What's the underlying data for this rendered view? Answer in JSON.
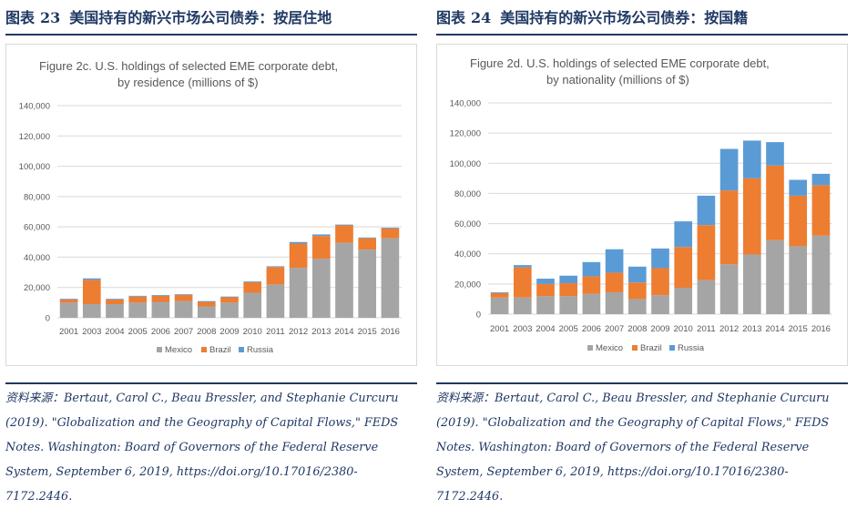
{
  "figures": [
    {
      "label": "图表",
      "number": "23",
      "title": "美国持有的新兴市场公司债券：按居住地",
      "source": "资料来源：Bertaut, Carol C., Beau Bressler, and Stephanie Curcuru (2019). \"Globalization and the Geography of Capital Flows,\" FEDS Notes. Washington: Board of Governors of the Federal Reserve System, September 6, 2019, https://doi.org/10.17016/2380-7172.2446."
    },
    {
      "label": "图表",
      "number": "24",
      "title": "美国持有的新兴市场公司债券：按国籍",
      "source": "资料来源：Bertaut, Carol C., Beau Bressler, and Stephanie Curcuru (2019). \"Globalization and the Geography of Capital Flows,\" FEDS Notes. Washington: Board of Governors of the Federal Reserve System, September 6, 2019, https://doi.org/10.17016/2380-7172.2446."
    }
  ],
  "colors": {
    "mexico": "#a5a5a5",
    "brazil": "#ed7d31",
    "russia": "#5b9bd5",
    "grid": "#d9d9d9",
    "text": "#595959"
  },
  "chart_data": [
    {
      "type": "bar",
      "stacked": true,
      "title": "Figure 2c.  U.S. holdings of selected EME corporate debt,",
      "subtitle": "by residence (millions of $)",
      "categories": [
        "2001",
        "2003",
        "2004",
        "2005",
        "2006",
        "2007",
        "2008",
        "2009",
        "2010",
        "2011",
        "2012",
        "2013",
        "2014",
        "2015",
        "2016"
      ],
      "series": [
        {
          "name": "Mexico",
          "values": [
            10000,
            9000,
            9000,
            10000,
            10500,
            11000,
            7500,
            10000,
            16500,
            22000,
            33000,
            39000,
            49500,
            45000,
            52500
          ]
        },
        {
          "name": "Brazil",
          "values": [
            2000,
            16000,
            3000,
            4000,
            4000,
            4000,
            3000,
            3500,
            7000,
            11500,
            16000,
            15000,
            11500,
            7500,
            6500
          ]
        },
        {
          "name": "Russia",
          "values": [
            500,
            1000,
            500,
            500,
            500,
            500,
            500,
            500,
            500,
            500,
            1000,
            1000,
            500,
            500,
            500
          ]
        }
      ],
      "yticks": [
        "0",
        "20,000",
        "40,000",
        "60,000",
        "80,000",
        "100,000",
        "120,000",
        "140,000"
      ],
      "ylim": [
        0,
        140000
      ],
      "legend_position": "bottom"
    },
    {
      "type": "bar",
      "stacked": true,
      "title": "Figure 2d.  U.S. holdings of selected EME corporate debt,",
      "subtitle": "by nationality (millions of $)",
      "categories": [
        "2001",
        "2003",
        "2004",
        "2005",
        "2006",
        "2007",
        "2008",
        "2009",
        "2010",
        "2011",
        "2012",
        "2013",
        "2014",
        "2015",
        "2016"
      ],
      "series": [
        {
          "name": "Mexico",
          "values": [
            11000,
            11000,
            12000,
            12000,
            13500,
            14500,
            10000,
            12500,
            17500,
            22500,
            33000,
            39500,
            49000,
            45000,
            52000
          ]
        },
        {
          "name": "Brazil",
          "values": [
            3000,
            20000,
            8000,
            8500,
            11500,
            13000,
            11000,
            18000,
            27000,
            36500,
            49000,
            50500,
            49500,
            33500,
            33500
          ]
        },
        {
          "name": "Russia",
          "values": [
            500,
            1500,
            3500,
            5000,
            9500,
            15500,
            10500,
            13000,
            17000,
            19500,
            27500,
            25000,
            15500,
            10500,
            7500
          ]
        }
      ],
      "yticks": [
        "0",
        "20,000",
        "40,000",
        "60,000",
        "80,000",
        "100,000",
        "120,000",
        "140,000"
      ],
      "ylim": [
        0,
        140000
      ],
      "legend_position": "bottom"
    }
  ]
}
